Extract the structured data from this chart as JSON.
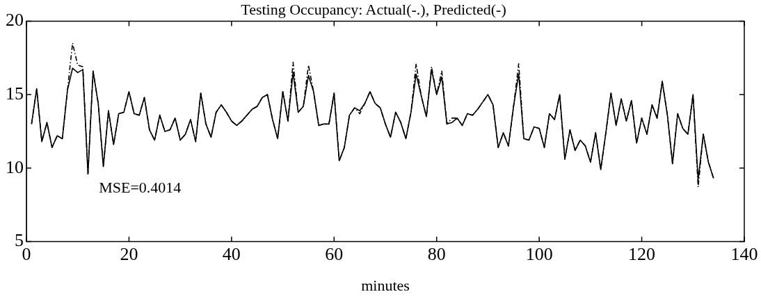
{
  "chart_data": {
    "type": "line",
    "title": "Testing Occupancy: Actual(-.), Predicted(-)",
    "xlabel": "minutes",
    "annotations": [
      "MSE=0.4014"
    ],
    "x": [
      1,
      2,
      3,
      4,
      5,
      6,
      7,
      8,
      9,
      10,
      11,
      12,
      13,
      14,
      15,
      16,
      17,
      18,
      19,
      20,
      21,
      22,
      23,
      24,
      25,
      26,
      27,
      28,
      29,
      30,
      31,
      32,
      33,
      34,
      35,
      36,
      37,
      38,
      39,
      40,
      41,
      42,
      43,
      44,
      45,
      46,
      47,
      48,
      49,
      50,
      51,
      52,
      53,
      54,
      55,
      56,
      57,
      58,
      59,
      60,
      61,
      62,
      63,
      64,
      65,
      66,
      67,
      68,
      69,
      70,
      71,
      72,
      73,
      74,
      75,
      76,
      77,
      78,
      79,
      80,
      81,
      82,
      83,
      84,
      85,
      86,
      87,
      88,
      89,
      90,
      91,
      92,
      93,
      94,
      95,
      96,
      97,
      98,
      99,
      100,
      101,
      102,
      103,
      104,
      105,
      106,
      107,
      108,
      109,
      110,
      111,
      112,
      113,
      114,
      115,
      116,
      117,
      118,
      119,
      120,
      121,
      122,
      123,
      124,
      125,
      126,
      127,
      128,
      129,
      130,
      131,
      132,
      133,
      134
    ],
    "series": [
      {
        "color": "#000000",
        "line_style": "dashed",
        "values": [
          13.0,
          15.4,
          11.8,
          13.1,
          11.4,
          12.2,
          12.0,
          15.3,
          18.5,
          17.0,
          16.9,
          9.6,
          16.6,
          14.4,
          10.1,
          13.9,
          11.6,
          13.7,
          13.8,
          15.2,
          13.7,
          13.6,
          14.8,
          12.6,
          11.9,
          13.6,
          12.5,
          12.6,
          13.4,
          11.9,
          12.3,
          13.3,
          11.8,
          15.1,
          13.0,
          12.1,
          13.8,
          14.3,
          13.8,
          13.2,
          12.9,
          13.2,
          13.6,
          14.0,
          14.2,
          14.8,
          15.0,
          13.3,
          12.0,
          15.2,
          13.2,
          17.2,
          13.8,
          14.2,
          17.0,
          15.2,
          12.9,
          13.0,
          13.0,
          15.1,
          10.5,
          11.4,
          13.6,
          14.1,
          13.7,
          14.4,
          15.2,
          14.4,
          14.1,
          13.0,
          12.1,
          13.8,
          13.1,
          12.0,
          13.8,
          17.1,
          14.9,
          13.5,
          16.9,
          15.0,
          16.6,
          13.0,
          13.4,
          13.4,
          12.9,
          13.7,
          13.6,
          14.0,
          14.5,
          15.0,
          14.3,
          11.4,
          12.4,
          11.5,
          14.2,
          17.1,
          12.0,
          11.9,
          12.8,
          12.7,
          11.4,
          13.7,
          13.3,
          15.0,
          10.6,
          12.6,
          11.2,
          11.9,
          11.5,
          10.4,
          12.4,
          9.9,
          12.4,
          15.1,
          12.9,
          14.7,
          13.2,
          14.6,
          11.7,
          13.4,
          12.3,
          14.3,
          13.4,
          15.9,
          13.6,
          10.3,
          13.7,
          12.7,
          12.3,
          15.0,
          8.7,
          12.3,
          10.4,
          9.3
        ]
      },
      {
        "color": "#000000",
        "line_style": "solid",
        "values": [
          13.0,
          15.4,
          11.8,
          13.1,
          11.4,
          12.2,
          12.0,
          15.3,
          16.8,
          16.5,
          16.7,
          9.6,
          16.6,
          14.4,
          10.1,
          13.9,
          11.6,
          13.7,
          13.8,
          15.2,
          13.7,
          13.6,
          14.8,
          12.6,
          11.9,
          13.6,
          12.5,
          12.6,
          13.4,
          11.9,
          12.3,
          13.3,
          11.8,
          15.1,
          13.0,
          12.1,
          13.8,
          14.3,
          13.8,
          13.2,
          12.9,
          13.2,
          13.6,
          14.0,
          14.2,
          14.8,
          15.0,
          13.3,
          12.0,
          15.2,
          13.2,
          16.5,
          13.8,
          14.2,
          16.3,
          15.2,
          12.9,
          13.0,
          13.0,
          15.1,
          10.5,
          11.4,
          13.6,
          14.1,
          13.9,
          14.4,
          15.2,
          14.4,
          14.1,
          13.0,
          12.1,
          13.8,
          13.1,
          12.0,
          13.8,
          16.4,
          14.9,
          13.5,
          16.7,
          15.0,
          16.2,
          13.0,
          13.1,
          13.4,
          12.9,
          13.7,
          13.6,
          14.0,
          14.5,
          15.0,
          14.3,
          11.4,
          12.4,
          11.5,
          14.2,
          16.4,
          12.0,
          11.9,
          12.8,
          12.7,
          11.4,
          13.7,
          13.3,
          15.0,
          10.6,
          12.6,
          11.2,
          11.9,
          11.5,
          10.4,
          12.4,
          9.9,
          12.4,
          15.1,
          12.9,
          14.7,
          13.2,
          14.6,
          11.7,
          13.4,
          12.3,
          14.3,
          13.4,
          15.9,
          13.6,
          10.3,
          13.7,
          12.7,
          12.3,
          15.0,
          9.2,
          12.3,
          10.4,
          9.3
        ]
      }
    ],
    "xlim": [
      0,
      140
    ],
    "xticks": [
      0,
      20,
      40,
      60,
      80,
      100,
      120,
      140
    ],
    "ylim": [
      5,
      20
    ],
    "yticks": [
      5,
      10,
      15,
      20
    ],
    "grid": false,
    "legend": false,
    "marker": "none"
  }
}
